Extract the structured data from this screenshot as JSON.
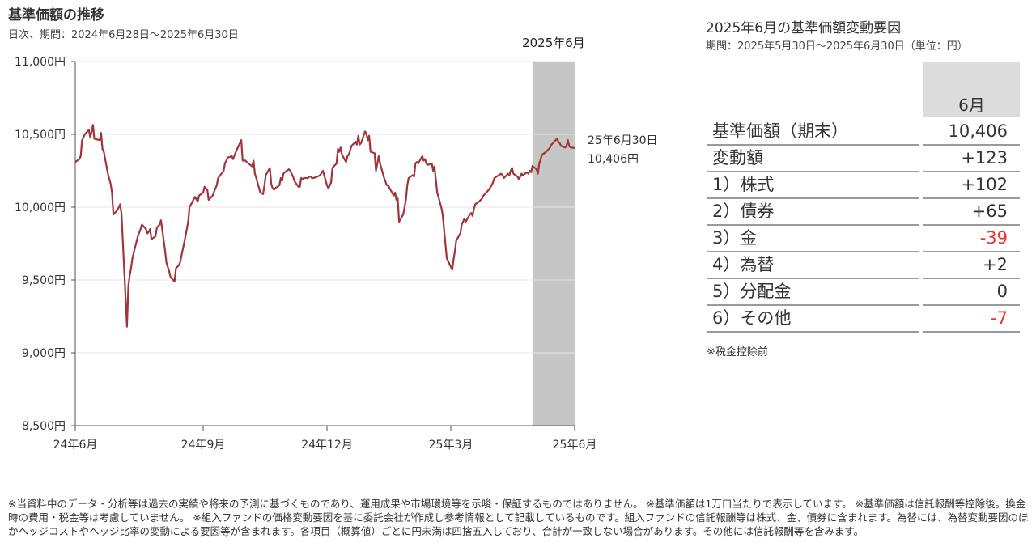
{
  "left": {
    "title": "基準価額の推移",
    "subtitle": "日次、期間：2024年6月28日～2025年6月30日"
  },
  "chart_data": {
    "type": "line",
    "title": "基準価額の推移",
    "ylim": [
      8500,
      11000
    ],
    "y_ticks": [
      "11,000円",
      "10,500円",
      "10,000円",
      "9,500円",
      "9,000円",
      "8,500円"
    ],
    "y_tick_values": [
      11000,
      10500,
      10000,
      9500,
      9000,
      8500
    ],
    "x_ticks": [
      "24年6月",
      "24年9月",
      "24年12月",
      "25年3月",
      "25年6月"
    ],
    "x_tick_dates": [
      "2024-06-28",
      "2024-09-30",
      "2024-12-30",
      "2025-03-31",
      "2025-06-30"
    ],
    "x_range": [
      "2024-06-28",
      "2025-06-30"
    ],
    "highlight": {
      "label": "2025年6月",
      "from": "2025-05-30",
      "to": "2025-06-30"
    },
    "end_annotation": {
      "line1": "25年6月30日",
      "line2": "10,406円"
    },
    "series": [
      {
        "color": "#a0353c",
        "points": [
          [
            "2024-06-28",
            10310
          ],
          [
            "2024-07-01",
            10330
          ],
          [
            "2024-07-02",
            10350
          ],
          [
            "2024-07-03",
            10460
          ],
          [
            "2024-07-05",
            10500
          ],
          [
            "2024-07-08",
            10530
          ],
          [
            "2024-07-09",
            10480
          ],
          [
            "2024-07-10",
            10520
          ],
          [
            "2024-07-11",
            10565
          ],
          [
            "2024-07-12",
            10470
          ],
          [
            "2024-07-16",
            10460
          ],
          [
            "2024-07-17",
            10510
          ],
          [
            "2024-07-18",
            10400
          ],
          [
            "2024-07-19",
            10380
          ],
          [
            "2024-07-22",
            10230
          ],
          [
            "2024-07-24",
            10160
          ],
          [
            "2024-07-25",
            10100
          ],
          [
            "2024-07-26",
            9950
          ],
          [
            "2024-07-29",
            9980
          ],
          [
            "2024-07-31",
            10020
          ],
          [
            "2024-08-01",
            9950
          ],
          [
            "2024-08-02",
            9760
          ],
          [
            "2024-08-05",
            9180
          ],
          [
            "2024-08-06",
            9460
          ],
          [
            "2024-08-07",
            9530
          ],
          [
            "2024-08-08",
            9580
          ],
          [
            "2024-08-09",
            9650
          ],
          [
            "2024-08-13",
            9800
          ],
          [
            "2024-08-15",
            9850
          ],
          [
            "2024-08-16",
            9880
          ],
          [
            "2024-08-19",
            9850
          ],
          [
            "2024-08-20",
            9820
          ],
          [
            "2024-08-21",
            9830
          ],
          [
            "2024-08-22",
            9850
          ],
          [
            "2024-08-23",
            9780
          ],
          [
            "2024-08-26",
            9800
          ],
          [
            "2024-08-27",
            9860
          ],
          [
            "2024-08-29",
            9880
          ],
          [
            "2024-08-30",
            9910
          ],
          [
            "2024-09-02",
            9700
          ],
          [
            "2024-09-03",
            9620
          ],
          [
            "2024-09-05",
            9560
          ],
          [
            "2024-09-06",
            9520
          ],
          [
            "2024-09-09",
            9490
          ],
          [
            "2024-09-10",
            9580
          ],
          [
            "2024-09-12",
            9600
          ],
          [
            "2024-09-13",
            9620
          ],
          [
            "2024-09-17",
            9800
          ],
          [
            "2024-09-19",
            9900
          ],
          [
            "2024-09-20",
            10000
          ],
          [
            "2024-09-24",
            10070
          ],
          [
            "2024-09-26",
            10040
          ],
          [
            "2024-09-27",
            10080
          ],
          [
            "2024-09-30",
            10100
          ],
          [
            "2024-10-01",
            10140
          ],
          [
            "2024-10-03",
            10120
          ],
          [
            "2024-10-04",
            10050
          ],
          [
            "2024-10-07",
            10080
          ],
          [
            "2024-10-09",
            10130
          ],
          [
            "2024-10-10",
            10150
          ],
          [
            "2024-10-11",
            10200
          ],
          [
            "2024-10-15",
            10250
          ],
          [
            "2024-10-16",
            10300
          ],
          [
            "2024-10-18",
            10340
          ],
          [
            "2024-10-21",
            10350
          ],
          [
            "2024-10-22",
            10330
          ],
          [
            "2024-10-24",
            10380
          ],
          [
            "2024-10-25",
            10400
          ],
          [
            "2024-10-28",
            10460
          ],
          [
            "2024-10-29",
            10320
          ],
          [
            "2024-10-31",
            10320
          ],
          [
            "2024-11-01",
            10310
          ],
          [
            "2024-11-05",
            10280
          ],
          [
            "2024-11-06",
            10320
          ],
          [
            "2024-11-07",
            10230
          ],
          [
            "2024-11-08",
            10200
          ],
          [
            "2024-11-11",
            10100
          ],
          [
            "2024-11-13",
            10090
          ],
          [
            "2024-11-14",
            10150
          ],
          [
            "2024-11-15",
            10220
          ],
          [
            "2024-11-18",
            10270
          ],
          [
            "2024-11-19",
            10160
          ],
          [
            "2024-11-20",
            10130
          ],
          [
            "2024-11-21",
            10120
          ],
          [
            "2024-11-22",
            10130
          ],
          [
            "2024-11-25",
            10150
          ],
          [
            "2024-11-26",
            10200
          ],
          [
            "2024-11-27",
            10180
          ],
          [
            "2024-11-28",
            10230
          ],
          [
            "2024-11-29",
            10240
          ],
          [
            "2024-12-02",
            10260
          ],
          [
            "2024-12-03",
            10250
          ],
          [
            "2024-12-04",
            10230
          ],
          [
            "2024-12-05",
            10210
          ],
          [
            "2024-12-06",
            10180
          ],
          [
            "2024-12-09",
            10140
          ],
          [
            "2024-12-10",
            10140
          ],
          [
            "2024-12-11",
            10200
          ],
          [
            "2024-12-12",
            10190
          ],
          [
            "2024-12-13",
            10200
          ],
          [
            "2024-12-16",
            10200
          ],
          [
            "2024-12-17",
            10210
          ],
          [
            "2024-12-18",
            10210
          ],
          [
            "2024-12-19",
            10200
          ],
          [
            "2024-12-20",
            10200
          ],
          [
            "2024-12-23",
            10210
          ],
          [
            "2024-12-25",
            10220
          ],
          [
            "2024-12-27",
            10250
          ],
          [
            "2024-12-30",
            10150
          ],
          [
            "2024-12-31",
            10130
          ],
          [
            "2025-01-02",
            10170
          ],
          [
            "2025-01-03",
            10270
          ],
          [
            "2025-01-06",
            10300
          ],
          [
            "2025-01-07",
            10400
          ],
          [
            "2025-01-08",
            10380
          ],
          [
            "2025-01-09",
            10410
          ],
          [
            "2025-01-10",
            10360
          ],
          [
            "2025-01-13",
            10310
          ],
          [
            "2025-01-14",
            10350
          ],
          [
            "2025-01-15",
            10360
          ],
          [
            "2025-01-16",
            10390
          ],
          [
            "2025-01-17",
            10420
          ],
          [
            "2025-01-20",
            10450
          ],
          [
            "2025-01-21",
            10430
          ],
          [
            "2025-01-22",
            10490
          ],
          [
            "2025-01-23",
            10430
          ],
          [
            "2025-01-24",
            10440
          ],
          [
            "2025-01-27",
            10520
          ],
          [
            "2025-01-28",
            10500
          ],
          [
            "2025-01-29",
            10460
          ],
          [
            "2025-01-30",
            10490
          ],
          [
            "2025-01-31",
            10380
          ],
          [
            "2025-02-03",
            10370
          ],
          [
            "2025-02-04",
            10250
          ],
          [
            "2025-02-05",
            10300
          ],
          [
            "2025-02-06",
            10350
          ],
          [
            "2025-02-07",
            10300
          ],
          [
            "2025-02-10",
            10200
          ],
          [
            "2025-02-12",
            10150
          ],
          [
            "2025-02-13",
            10150
          ],
          [
            "2025-02-14",
            10130
          ],
          [
            "2025-02-17",
            10080
          ],
          [
            "2025-02-18",
            10100
          ],
          [
            "2025-02-19",
            10050
          ],
          [
            "2025-02-20",
            10060
          ],
          [
            "2025-02-21",
            9900
          ],
          [
            "2025-02-24",
            9950
          ],
          [
            "2025-02-25",
            10000
          ],
          [
            "2025-02-26",
            10050
          ],
          [
            "2025-02-27",
            10150
          ],
          [
            "2025-02-28",
            10200
          ],
          [
            "2025-03-03",
            10220
          ],
          [
            "2025-03-04",
            10210
          ],
          [
            "2025-03-05",
            10300
          ],
          [
            "2025-03-06",
            10310
          ],
          [
            "2025-03-07",
            10300
          ],
          [
            "2025-03-10",
            10350
          ],
          [
            "2025-03-11",
            10320
          ],
          [
            "2025-03-12",
            10330
          ],
          [
            "2025-03-13",
            10300
          ],
          [
            "2025-03-14",
            10290
          ],
          [
            "2025-03-17",
            10300
          ],
          [
            "2025-03-18",
            10250
          ],
          [
            "2025-03-19",
            10280
          ],
          [
            "2025-03-21",
            10100
          ],
          [
            "2025-03-24",
            10000
          ],
          [
            "2025-03-25",
            9950
          ],
          [
            "2025-03-26",
            9850
          ],
          [
            "2025-03-27",
            9750
          ],
          [
            "2025-03-28",
            9650
          ],
          [
            "2025-03-31",
            9590
          ],
          [
            "2025-04-01",
            9570
          ],
          [
            "2025-04-02",
            9640
          ],
          [
            "2025-04-03",
            9700
          ],
          [
            "2025-04-04",
            9770
          ],
          [
            "2025-04-07",
            9820
          ],
          [
            "2025-04-08",
            9880
          ],
          [
            "2025-04-09",
            9900
          ],
          [
            "2025-04-10",
            9920
          ],
          [
            "2025-04-11",
            9900
          ],
          [
            "2025-04-14",
            9950
          ],
          [
            "2025-04-15",
            9960
          ],
          [
            "2025-04-16",
            9940
          ],
          [
            "2025-04-17",
            9990
          ],
          [
            "2025-04-18",
            10020
          ],
          [
            "2025-04-21",
            10040
          ],
          [
            "2025-04-22",
            10050
          ],
          [
            "2025-04-23",
            10060
          ],
          [
            "2025-04-24",
            10080
          ],
          [
            "2025-04-25",
            10090
          ],
          [
            "2025-04-28",
            10120
          ],
          [
            "2025-04-30",
            10150
          ],
          [
            "2025-05-01",
            10170
          ],
          [
            "2025-05-02",
            10200
          ],
          [
            "2025-05-07",
            10230
          ],
          [
            "2025-05-08",
            10220
          ],
          [
            "2025-05-09",
            10200
          ],
          [
            "2025-05-12",
            10230
          ],
          [
            "2025-05-13",
            10220
          ],
          [
            "2025-05-14",
            10250
          ],
          [
            "2025-05-15",
            10270
          ],
          [
            "2025-05-16",
            10230
          ],
          [
            "2025-05-19",
            10210
          ],
          [
            "2025-05-20",
            10190
          ],
          [
            "2025-05-21",
            10210
          ],
          [
            "2025-05-22",
            10230
          ],
          [
            "2025-05-23",
            10220
          ],
          [
            "2025-05-26",
            10240
          ],
          [
            "2025-05-27",
            10230
          ],
          [
            "2025-05-28",
            10250
          ],
          [
            "2025-05-29",
            10240
          ],
          [
            "2025-05-30",
            10283
          ],
          [
            "2025-06-02",
            10260
          ],
          [
            "2025-06-03",
            10230
          ],
          [
            "2025-06-04",
            10300
          ],
          [
            "2025-06-05",
            10330
          ],
          [
            "2025-06-06",
            10360
          ],
          [
            "2025-06-09",
            10380
          ],
          [
            "2025-06-10",
            10390
          ],
          [
            "2025-06-11",
            10400
          ],
          [
            "2025-06-12",
            10410
          ],
          [
            "2025-06-13",
            10430
          ],
          [
            "2025-06-16",
            10460
          ],
          [
            "2025-06-17",
            10470
          ],
          [
            "2025-06-18",
            10450
          ],
          [
            "2025-06-19",
            10440
          ],
          [
            "2025-06-20",
            10420
          ],
          [
            "2025-06-23",
            10410
          ],
          [
            "2025-06-24",
            10420
          ],
          [
            "2025-06-25",
            10460
          ],
          [
            "2025-06-26",
            10420
          ],
          [
            "2025-06-27",
            10410
          ],
          [
            "2025-06-30",
            10406
          ]
        ]
      }
    ]
  },
  "right": {
    "title": "2025年6月の基準価額変動要因",
    "subtitle": "期間：2025年5月30日～2025年6月30日（単位：円）",
    "column_header": "6月",
    "rows": [
      {
        "label": "基準価額（期末）",
        "value": "10,406"
      },
      {
        "label": "変動額",
        "value": "+123"
      },
      {
        "label": "1）株式",
        "value": "+102"
      },
      {
        "label": "2）債券",
        "value": "+65"
      },
      {
        "label": "3）金",
        "value": "-39",
        "negative": true
      },
      {
        "label": "4）為替",
        "value": "+2"
      },
      {
        "label": "5）分配金",
        "value": "0"
      },
      {
        "label": "6）その他",
        "value": "-7",
        "negative": true
      }
    ],
    "negative_color": "#e8362f",
    "note": "※税金控除前"
  },
  "footer": "※当資料中のデータ・分析等は過去の実績や将来の予測に基づくものであり、運用成果や市場環境等を示唆・保証するものではありません。 ※基準価額は1万口当たりで表示しています。 ※基準価額は信託報酬等控除後。換金時の費用・税金等は考慮していません。 ※組入ファンドの価格変動要因を基に委託会社が作成し参考情報として記載しているものです。組入ファンドの信託報酬等は株式、金、債券に含まれます。為替には、為替変動要因のほかヘッジコストやヘッジ比率の変動による要因等が含まれます。各項目（概算値）ごとに円未満は四捨五入しており、合計が一致しない場合があります。その他には信託報酬等を含みます。"
}
